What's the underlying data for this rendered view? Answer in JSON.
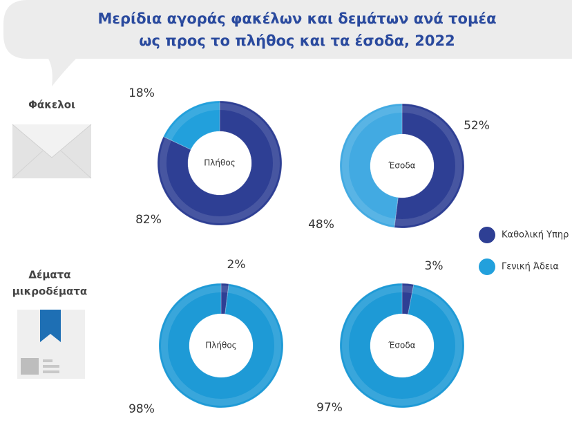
{
  "title": [
    "Μερίδια αγοράς φακέλων και δεμάτων ανά τομέα",
    "ως προς το πλήθος και τα έσοδα, 2022"
  ],
  "row_labels": [
    [
      "Φάκελοι"
    ],
    [
      "Δέματα",
      "μικροδέματα"
    ]
  ],
  "chart_data": [
    {
      "type": "pie",
      "center_label": "Πλήθος",
      "categories": [
        "Καθολική Υπηρ",
        "Γενική Άδεια"
      ],
      "colors": [
        "#2e3f94",
        "#22a0dc"
      ],
      "values": [
        82,
        18
      ],
      "value_labels": [
        "82%",
        "18%"
      ]
    },
    {
      "type": "pie",
      "center_label": "Έσοδα",
      "categories": [
        "Καθολική Υπηρ",
        "Γενική Άδεια"
      ],
      "colors": [
        "#2e3f94",
        "#42aae2"
      ],
      "values": [
        52,
        48
      ],
      "value_labels": [
        "52%",
        "48%"
      ]
    },
    {
      "type": "pie",
      "center_label": "Πλήθος",
      "categories": [
        "Καθολική Υπηρ",
        "Γενική Άδεια"
      ],
      "colors": [
        "#2e3f94",
        "#1e9ad6"
      ],
      "values": [
        2,
        98
      ],
      "value_labels": [
        "2%",
        "98%"
      ]
    },
    {
      "type": "pie",
      "center_label": "Έσοδα",
      "categories": [
        "Καθολική Υπηρ",
        "Γενική Άδεια"
      ],
      "colors": [
        "#2e3f94",
        "#1e9ad6"
      ],
      "values": [
        3,
        97
      ],
      "value_labels": [
        "3%",
        "97%"
      ]
    }
  ]
}
